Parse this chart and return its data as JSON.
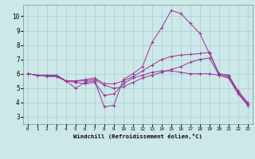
{
  "xlabel": "Windchill (Refroidissement éolien,°C)",
  "bg_color": "#cce8e8",
  "grid_color": "#aacccc",
  "line_color": "#993399",
  "xlim": [
    -0.5,
    23.5
  ],
  "ylim": [
    2.5,
    10.8
  ],
  "xticks": [
    0,
    1,
    2,
    3,
    4,
    5,
    6,
    7,
    8,
    9,
    10,
    11,
    12,
    13,
    14,
    15,
    16,
    17,
    18,
    19,
    20,
    21,
    22,
    23
  ],
  "yticks": [
    3,
    4,
    5,
    6,
    7,
    8,
    9,
    10
  ],
  "lines": [
    {
      "x": [
        0,
        1,
        2,
        3,
        4,
        5,
        6,
        7,
        8,
        9,
        10,
        11,
        12,
        13,
        14,
        15,
        16,
        17,
        18,
        19,
        20,
        21,
        22,
        23
      ],
      "y": [
        6.0,
        5.9,
        5.9,
        5.8,
        5.5,
        5.0,
        5.4,
        5.5,
        3.7,
        3.8,
        5.6,
        6.0,
        6.5,
        8.2,
        9.2,
        10.4,
        10.2,
        9.5,
        8.8,
        7.4,
        6.0,
        5.9,
        4.7,
        3.9
      ]
    },
    {
      "x": [
        0,
        1,
        2,
        3,
        4,
        5,
        6,
        7,
        8,
        9,
        10,
        11,
        12,
        13,
        14,
        15,
        16,
        17,
        18,
        19,
        20,
        21,
        22,
        23
      ],
      "y": [
        6.0,
        5.9,
        5.9,
        5.9,
        5.5,
        5.5,
        5.6,
        5.7,
        5.3,
        5.3,
        5.5,
        5.8,
        6.2,
        6.6,
        7.0,
        7.2,
        7.3,
        7.35,
        7.4,
        7.5,
        6.0,
        5.9,
        4.8,
        4.0
      ]
    },
    {
      "x": [
        0,
        1,
        2,
        3,
        4,
        5,
        6,
        7,
        8,
        9,
        10,
        11,
        12,
        13,
        14,
        15,
        16,
        17,
        18,
        19,
        20,
        21,
        22,
        23
      ],
      "y": [
        6.0,
        5.9,
        5.9,
        5.9,
        5.5,
        5.5,
        5.5,
        5.6,
        5.2,
        5.0,
        5.1,
        5.4,
        5.7,
        5.9,
        6.1,
        6.3,
        6.5,
        6.8,
        7.0,
        7.1,
        5.9,
        5.8,
        4.7,
        3.9
      ]
    },
    {
      "x": [
        0,
        1,
        2,
        3,
        4,
        5,
        6,
        7,
        8,
        9,
        10,
        11,
        12,
        13,
        14,
        15,
        16,
        17,
        18,
        19,
        20,
        21,
        22,
        23
      ],
      "y": [
        6.0,
        5.9,
        5.8,
        5.8,
        5.5,
        5.4,
        5.3,
        5.4,
        4.5,
        4.6,
        5.3,
        5.7,
        5.9,
        6.1,
        6.2,
        6.2,
        6.1,
        6.0,
        6.0,
        6.0,
        5.9,
        5.7,
        4.6,
        3.8
      ]
    }
  ]
}
